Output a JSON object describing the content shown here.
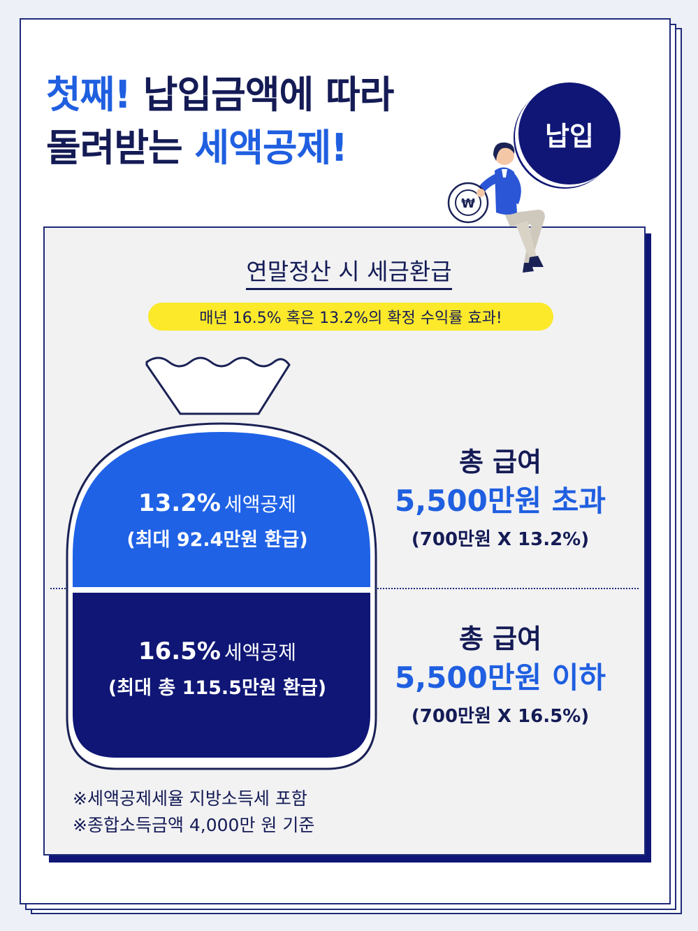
{
  "title": {
    "line1_highlight": "첫째!",
    "line1_rest": " 납입금액에 따라",
    "line2_rest": "돌려받는 ",
    "line2_highlight": "세액공제!"
  },
  "badge": {
    "label": "납입"
  },
  "panel": {
    "heading": "연말정산 시 세금환급",
    "pill": "매년 16.5% 혹은 13.2%의 확정 수익률 효과!"
  },
  "bag": {
    "upper": {
      "rate": "13.2%",
      "label": "세액공제",
      "detail": "(최대 92.4만원 환급)"
    },
    "lower": {
      "rate": "16.5%",
      "label": "세액공제",
      "detail": "(최대 총 115.5만원 환급)"
    }
  },
  "tiers": [
    {
      "title": "총 급여",
      "amount": "5,500만원 초과",
      "formula": "(700만원 X 13.2%)"
    },
    {
      "title": "총 급여",
      "amount": "5,500만원 이하",
      "formula": "(700만원 X 16.5%)"
    }
  ],
  "notes": [
    "※세액공제세율 지방소득세 포함",
    "※종합소득금액 4,000만 원 기준"
  ],
  "colors": {
    "navy": "#0f1675",
    "blue": "#1f5fe0",
    "yellow": "#fbe92a",
    "panel": "#f2f2f3"
  },
  "icons": {
    "coin": "won-coin-icon",
    "person": "woman-sitting-illustration"
  }
}
